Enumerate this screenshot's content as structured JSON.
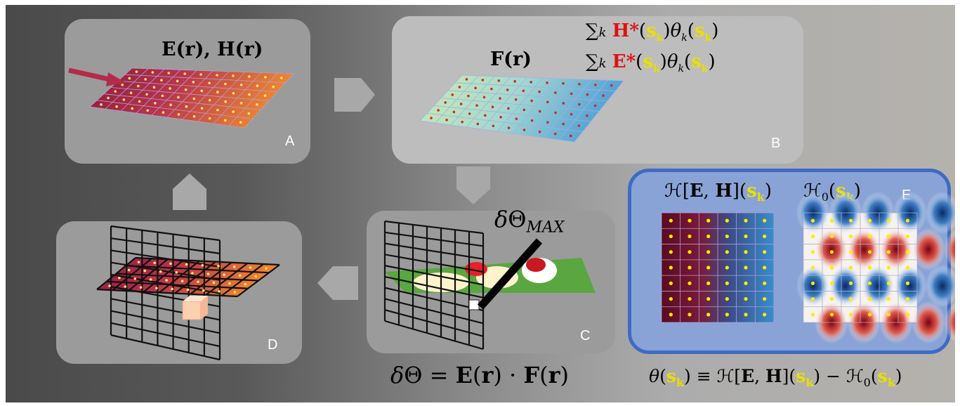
{
  "panels": {
    "A": {
      "letter": "A",
      "formula": "E(r), H(r)"
    },
    "B": {
      "letter": "B",
      "formula": "F(r)",
      "sum1": "∑k H*(sk)θk(sk)",
      "sum2": "∑k E*(sk)θk(sk)"
    },
    "C": {
      "letter": "C",
      "label": "δΘMAX"
    },
    "D": {
      "letter": "D"
    },
    "E": {
      "letter": "E",
      "label_left": "ℋ[E,H](sk)",
      "label_right": "ℋ0(sk)"
    }
  },
  "bottom_formulas": {
    "delta_theta": "δΘ = E(r) · F(r)",
    "theta_def": "θ(sk) ≡ ℋ[E,H](sk) − ℋ0(sk)"
  },
  "colors": {
    "panel": "#9b9b9b",
    "panel_light": "#bdbdbd",
    "panel_E": "#8aa3d6",
    "panel_E_border": "#3e6bc4",
    "highlight_red": "#e01010",
    "highlight_yellow": "#e8e000"
  },
  "icons": [
    "arrow-right-icon",
    "arrow-down-icon",
    "arrow-left-icon",
    "arrow-up-icon",
    "incident-arrow-icon",
    "pointer-stick-icon"
  ]
}
